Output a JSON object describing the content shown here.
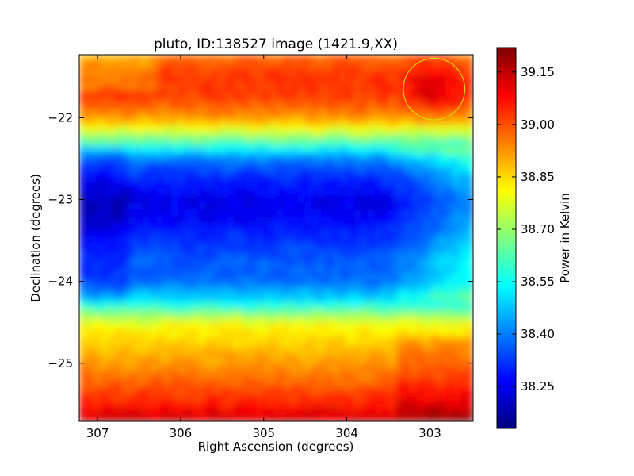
{
  "chart_data": {
    "type": "heatmap",
    "title": "pluto, ID:138527 image (1421.9,XX)",
    "xlabel": "Right Ascension (degrees)",
    "ylabel": "Declination (degrees)",
    "xlim": [
      307.22,
      302.48
    ],
    "ylim": [
      -25.71,
      -21.23
    ],
    "x_ticks": [
      307,
      306,
      305,
      304,
      303
    ],
    "x_tick_labels": [
      "307",
      "306",
      "305",
      "304",
      "303"
    ],
    "y_ticks": [
      -22,
      -23,
      -24,
      -25
    ],
    "y_tick_labels": [
      "−22",
      "−23",
      "−24",
      "−25"
    ],
    "colorbar": {
      "label": "Power in Kelvin",
      "range": [
        38.13,
        39.22
      ],
      "ticks": [
        38.25,
        38.4,
        38.55,
        38.7,
        38.85,
        39.0,
        39.15
      ],
      "tick_labels": [
        "38.25",
        "38.40",
        "38.55",
        "38.70",
        "38.85",
        "39.00",
        "39.15"
      ],
      "colormap": "jet"
    },
    "declination_profile": [
      {
        "dec": -21.25,
        "power": 38.97
      },
      {
        "dec": -21.5,
        "power": 39.03
      },
      {
        "dec": -21.75,
        "power": 39.02
      },
      {
        "dec": -22.0,
        "power": 38.93
      },
      {
        "dec": -22.25,
        "power": 38.68
      },
      {
        "dec": -22.5,
        "power": 38.4
      },
      {
        "dec": -22.75,
        "power": 38.3
      },
      {
        "dec": -23.0,
        "power": 38.24
      },
      {
        "dec": -23.25,
        "power": 38.26
      },
      {
        "dec": -23.5,
        "power": 38.32
      },
      {
        "dec": -23.75,
        "power": 38.36
      },
      {
        "dec": -24.0,
        "power": 38.38
      },
      {
        "dec": -24.25,
        "power": 38.52
      },
      {
        "dec": -24.5,
        "power": 38.8
      },
      {
        "dec": -24.75,
        "power": 38.86
      },
      {
        "dec": -25.0,
        "power": 38.92
      },
      {
        "dec": -25.25,
        "power": 38.98
      },
      {
        "dec": -25.5,
        "power": 39.06
      },
      {
        "dec": -25.7,
        "power": 39.14
      }
    ],
    "annotations": [
      {
        "type": "circle",
        "ra": 302.95,
        "dec": -21.65,
        "radius_deg": 0.37,
        "color": "#d8d800"
      }
    ]
  }
}
